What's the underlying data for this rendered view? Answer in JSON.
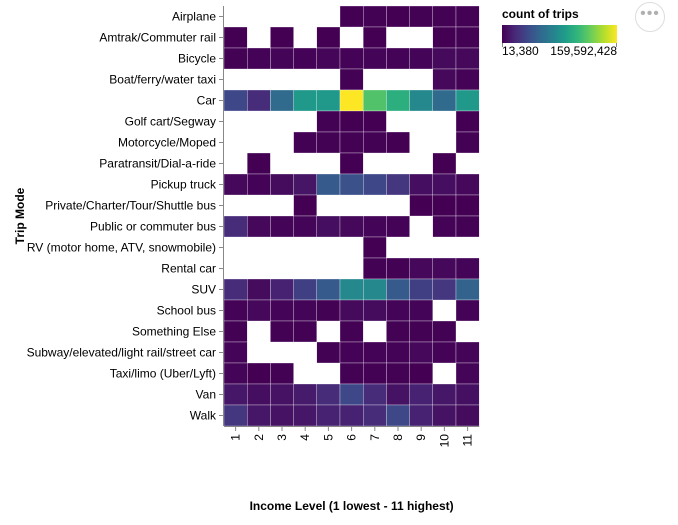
{
  "chart_data": {
    "type": "heatmap",
    "title": "",
    "xlabel": "Income Level (1 lowest - 11 highest)",
    "ylabel": "Trip Mode",
    "x": [
      "1",
      "2",
      "3",
      "4",
      "5",
      "6",
      "7",
      "8",
      "9",
      "10",
      "11"
    ],
    "y": [
      "Airplane",
      "Amtrak/Commuter rail",
      "Bicycle",
      "Boat/ferry/water taxi",
      "Car",
      "Golf cart/Segway",
      "Motorcycle/Moped",
      "Paratransit/Dial-a-ride",
      "Pickup truck",
      "Private/Charter/Tour/Shuttle bus",
      "Public or commuter bus",
      "RV (motor home, ATV, snowmobile)",
      "Rental car",
      "SUV",
      "School bus",
      "Something Else",
      "Subway/elevated/light rail/street car",
      "Taxi/limo (Uber/Lyft)",
      "Van",
      "Walk"
    ],
    "values": [
      [
        null,
        null,
        null,
        null,
        null,
        50000,
        300000,
        200000,
        400000,
        300000,
        500000
      ],
      [
        100000,
        null,
        200000,
        null,
        150000,
        null,
        200000,
        null,
        null,
        200000,
        400000
      ],
      [
        500000,
        800000,
        1500000,
        1000000,
        2500000,
        1000000,
        2000000,
        800000,
        1500000,
        4000000,
        3000000
      ],
      [
        null,
        null,
        null,
        null,
        null,
        300000,
        null,
        null,
        null,
        3000000,
        1000000
      ],
      [
        35000000,
        20000000,
        55000000,
        85000000,
        85000000,
        159592428,
        115000000,
        100000000,
        75000000,
        55000000,
        85000000
      ],
      [
        null,
        null,
        null,
        null,
        300000,
        200000,
        100000,
        null,
        null,
        null,
        200000
      ],
      [
        null,
        null,
        null,
        300000,
        300000,
        500000,
        300000,
        200000,
        null,
        null,
        300000
      ],
      [
        null,
        200000,
        null,
        null,
        null,
        100000,
        null,
        null,
        null,
        100000,
        null
      ],
      [
        3000000,
        1000000,
        5000000,
        9000000,
        45000000,
        40000000,
        35000000,
        25000000,
        6000000,
        6000000,
        3000000
      ],
      [
        null,
        null,
        null,
        200000,
        null,
        null,
        null,
        null,
        100000,
        200000,
        200000
      ],
      [
        20000000,
        3000000,
        2000000,
        2000000,
        6000000,
        3000000,
        2000000,
        1000000,
        null,
        1000000,
        500000
      ],
      [
        null,
        null,
        null,
        null,
        null,
        null,
        50000,
        null,
        null,
        null,
        null
      ],
      [
        null,
        null,
        null,
        null,
        null,
        null,
        300000,
        500000,
        3000000,
        3000000,
        2000000
      ],
      [
        20000000,
        5000000,
        15000000,
        30000000,
        45000000,
        75000000,
        75000000,
        45000000,
        30000000,
        25000000,
        50000000
      ],
      [
        1000000,
        3000000,
        2000000,
        2000000,
        500000,
        4000000,
        5000000,
        2000000,
        2000000,
        null,
        1000000
      ],
      [
        500000,
        null,
        300000,
        300000,
        null,
        300000,
        null,
        300000,
        300000,
        300000,
        null
      ],
      [
        2000000,
        null,
        null,
        null,
        500000,
        1000000,
        1000000,
        1000000,
        3000000,
        1000000,
        2000000
      ],
      [
        2000000,
        200000,
        500000,
        null,
        null,
        300000,
        500000,
        500000,
        200000,
        null,
        2000000
      ],
      [
        10000000,
        6000000,
        8000000,
        12000000,
        20000000,
        35000000,
        20000000,
        8000000,
        15000000,
        10000000,
        7000000
      ],
      [
        25000000,
        10000000,
        8000000,
        10000000,
        15000000,
        15000000,
        20000000,
        35000000,
        15000000,
        8000000,
        5000000
      ]
    ],
    "legend": {
      "title": "count of trips",
      "min_label": "13,380",
      "max_label": "159,592,428",
      "min": 13380,
      "max": 159592428,
      "position": "top-right"
    },
    "colorscale": "viridis",
    "grid": false
  },
  "menu": {
    "label": "•••"
  }
}
